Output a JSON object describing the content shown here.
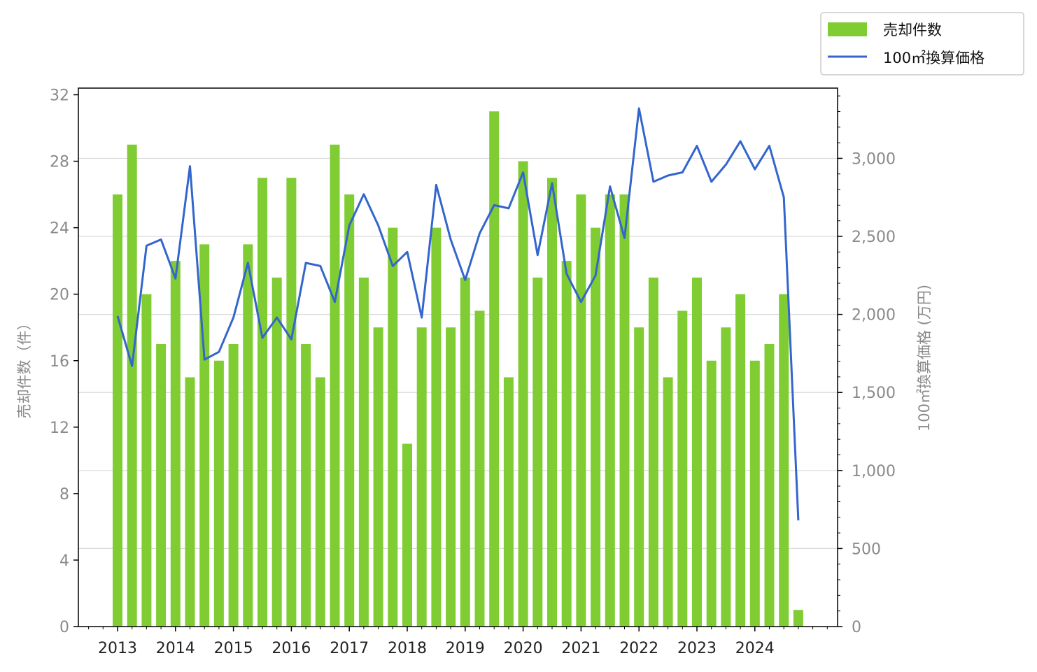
{
  "chart_data": {
    "type": "bar",
    "x_axis": {
      "tick_labels": [
        "2013",
        "2014",
        "2015",
        "2016",
        "2017",
        "2018",
        "2019",
        "2020",
        "2021",
        "2022",
        "2023",
        "2024"
      ]
    },
    "y_left": {
      "label": "売却件数（件）",
      "ylim": [
        0,
        32.4
      ],
      "ticks": [
        0,
        4,
        8,
        12,
        16,
        20,
        24,
        28,
        32
      ]
    },
    "y_right": {
      "label": "100㎡換算価格 (万円)",
      "ylim": [
        0,
        3450
      ],
      "ticks": [
        0,
        500,
        1000,
        1500,
        2000,
        2500,
        3000
      ],
      "tick_labels": [
        "0",
        "500",
        "1,000",
        "1,500",
        "2,000",
        "2,500",
        "3,000"
      ]
    },
    "grid": "horizontal (right axis)",
    "legend_position": "outside top-right",
    "series": [
      {
        "name": "売却件数",
        "type": "bar",
        "axis": "left",
        "color": "#80cc33",
        "values": [
          26,
          29,
          20,
          17,
          22,
          15,
          23,
          16,
          17,
          23,
          27,
          21,
          27,
          17,
          15,
          29,
          26,
          21,
          18,
          24,
          11,
          18,
          24,
          18,
          21,
          19,
          31,
          15,
          28,
          21,
          27,
          22,
          26,
          24,
          26,
          26,
          18,
          21,
          15,
          19,
          21,
          16,
          18,
          20,
          16,
          17,
          20,
          1
        ]
      },
      {
        "name": "100㎡換算価格",
        "type": "line",
        "axis": "right",
        "color": "#3366cc",
        "values": [
          1990,
          1670,
          2440,
          2480,
          2230,
          2950,
          1710,
          1760,
          1980,
          2330,
          1850,
          1980,
          1840,
          2330,
          2310,
          2080,
          2570,
          2770,
          2570,
          2310,
          2400,
          1980,
          2830,
          2480,
          2220,
          2520,
          2700,
          2680,
          2910,
          2380,
          2840,
          2260,
          2080,
          2250,
          2820,
          2490,
          3320,
          2850,
          2890,
          2910,
          3080,
          2850,
          2960,
          3110,
          2930,
          3080,
          2750,
          680
        ]
      }
    ]
  }
}
